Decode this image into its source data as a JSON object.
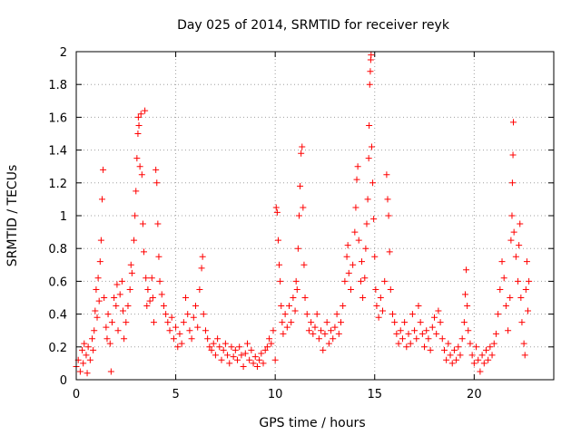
{
  "chart_data": {
    "type": "scatter",
    "title": "Day 025 of 2014, SRMTID for receiver reyk",
    "xlabel": "GPS time / hours",
    "ylabel": "SRMTID / TECUs",
    "xlim": [
      0,
      24
    ],
    "ylim": [
      0,
      2
    ],
    "xticks": [
      0,
      5,
      10,
      15,
      20
    ],
    "xtick_labels": [
      "0",
      "5",
      "10",
      "15",
      "20"
    ],
    "yticks": [
      0,
      0.2,
      0.4,
      0.6,
      0.8,
      1,
      1.2,
      1.4,
      1.6,
      1.8,
      2
    ],
    "ytick_labels": [
      "0",
      "0.2",
      "0.4",
      "0.6",
      "0.8",
      "1",
      "1.2",
      "1.4",
      "1.6",
      "1.8",
      "2"
    ],
    "grid": true,
    "marker": "+",
    "color": "#ff0000",
    "series": [
      {
        "name": "SRMTID",
        "points": [
          [
            0.0,
            0.08
          ],
          [
            0.1,
            0.12
          ],
          [
            0.2,
            0.05
          ],
          [
            0.3,
            0.18
          ],
          [
            0.35,
            0.1
          ],
          [
            0.4,
            0.22
          ],
          [
            0.5,
            0.15
          ],
          [
            0.55,
            0.04
          ],
          [
            0.6,
            0.2
          ],
          [
            0.7,
            0.12
          ],
          [
            0.8,
            0.25
          ],
          [
            0.85,
            0.18
          ],
          [
            0.9,
            0.3
          ],
          [
            0.95,
            0.42
          ],
          [
            1.0,
            0.55
          ],
          [
            1.05,
            0.38
          ],
          [
            1.1,
            0.62
          ],
          [
            1.15,
            0.48
          ],
          [
            1.2,
            0.72
          ],
          [
            1.25,
            0.85
          ],
          [
            1.3,
            1.1
          ],
          [
            1.35,
            1.28
          ],
          [
            1.4,
            0.5
          ],
          [
            1.5,
            0.32
          ],
          [
            1.55,
            0.25
          ],
          [
            1.6,
            0.4
          ],
          [
            1.7,
            0.22
          ],
          [
            1.75,
            0.05
          ],
          [
            1.8,
            0.35
          ],
          [
            1.9,
            0.5
          ],
          [
            2.0,
            0.45
          ],
          [
            2.05,
            0.58
          ],
          [
            2.1,
            0.3
          ],
          [
            2.2,
            0.52
          ],
          [
            2.3,
            0.6
          ],
          [
            2.35,
            0.42
          ],
          [
            2.4,
            0.25
          ],
          [
            2.5,
            0.35
          ],
          [
            2.6,
            0.45
          ],
          [
            2.7,
            0.55
          ],
          [
            2.75,
            0.7
          ],
          [
            2.8,
            0.65
          ],
          [
            2.9,
            0.85
          ],
          [
            2.95,
            1.0
          ],
          [
            3.0,
            1.15
          ],
          [
            3.05,
            1.35
          ],
          [
            3.1,
            1.5
          ],
          [
            3.12,
            1.6
          ],
          [
            3.15,
            1.55
          ],
          [
            3.2,
            1.3
          ],
          [
            3.25,
            1.62
          ],
          [
            3.3,
            1.25
          ],
          [
            3.35,
            0.95
          ],
          [
            3.4,
            0.78
          ],
          [
            3.45,
            1.64
          ],
          [
            3.5,
            0.62
          ],
          [
            3.55,
            0.45
          ],
          [
            3.6,
            0.55
          ],
          [
            3.7,
            0.48
          ],
          [
            3.8,
            0.62
          ],
          [
            3.85,
            0.5
          ],
          [
            3.9,
            0.35
          ],
          [
            4.0,
            1.28
          ],
          [
            4.05,
            1.2
          ],
          [
            4.1,
            0.95
          ],
          [
            4.15,
            0.75
          ],
          [
            4.2,
            0.6
          ],
          [
            4.3,
            0.52
          ],
          [
            4.4,
            0.45
          ],
          [
            4.5,
            0.4
          ],
          [
            4.6,
            0.35
          ],
          [
            4.7,
            0.3
          ],
          [
            4.8,
            0.38
          ],
          [
            4.9,
            0.25
          ],
          [
            5.0,
            0.32
          ],
          [
            5.1,
            0.2
          ],
          [
            5.2,
            0.28
          ],
          [
            5.3,
            0.22
          ],
          [
            5.4,
            0.35
          ],
          [
            5.5,
            0.5
          ],
          [
            5.6,
            0.4
          ],
          [
            5.7,
            0.3
          ],
          [
            5.8,
            0.25
          ],
          [
            5.9,
            0.38
          ],
          [
            6.0,
            0.45
          ],
          [
            6.1,
            0.32
          ],
          [
            6.2,
            0.55
          ],
          [
            6.3,
            0.68
          ],
          [
            6.35,
            0.75
          ],
          [
            6.4,
            0.4
          ],
          [
            6.5,
            0.3
          ],
          [
            6.6,
            0.25
          ],
          [
            6.7,
            0.2
          ],
          [
            6.8,
            0.18
          ],
          [
            6.9,
            0.22
          ],
          [
            7.0,
            0.15
          ],
          [
            7.1,
            0.25
          ],
          [
            7.2,
            0.2
          ],
          [
            7.3,
            0.12
          ],
          [
            7.4,
            0.18
          ],
          [
            7.5,
            0.22
          ],
          [
            7.6,
            0.15
          ],
          [
            7.7,
            0.1
          ],
          [
            7.8,
            0.2
          ],
          [
            7.9,
            0.14
          ],
          [
            8.0,
            0.18
          ],
          [
            8.1,
            0.12
          ],
          [
            8.2,
            0.2
          ],
          [
            8.3,
            0.15
          ],
          [
            8.4,
            0.08
          ],
          [
            8.5,
            0.16
          ],
          [
            8.6,
            0.22
          ],
          [
            8.7,
            0.12
          ],
          [
            8.8,
            0.18
          ],
          [
            8.9,
            0.1
          ],
          [
            9.0,
            0.14
          ],
          [
            9.1,
            0.08
          ],
          [
            9.2,
            0.12
          ],
          [
            9.3,
            0.16
          ],
          [
            9.4,
            0.1
          ],
          [
            9.5,
            0.18
          ],
          [
            9.6,
            0.2
          ],
          [
            9.7,
            0.25
          ],
          [
            9.8,
            0.22
          ],
          [
            9.9,
            0.3
          ],
          [
            10.0,
            0.12
          ],
          [
            10.05,
            1.05
          ],
          [
            10.1,
            1.02
          ],
          [
            10.15,
            0.85
          ],
          [
            10.2,
            0.7
          ],
          [
            10.25,
            0.6
          ],
          [
            10.3,
            0.45
          ],
          [
            10.35,
            0.35
          ],
          [
            10.4,
            0.28
          ],
          [
            10.5,
            0.4
          ],
          [
            10.6,
            0.32
          ],
          [
            10.7,
            0.45
          ],
          [
            10.8,
            0.35
          ],
          [
            10.9,
            0.5
          ],
          [
            11.0,
            0.42
          ],
          [
            11.05,
            0.6
          ],
          [
            11.1,
            0.55
          ],
          [
            11.15,
            0.8
          ],
          [
            11.2,
            1.0
          ],
          [
            11.25,
            1.18
          ],
          [
            11.3,
            1.38
          ],
          [
            11.35,
            1.42
          ],
          [
            11.4,
            1.05
          ],
          [
            11.45,
            0.7
          ],
          [
            11.5,
            0.5
          ],
          [
            11.6,
            0.4
          ],
          [
            11.7,
            0.3
          ],
          [
            11.8,
            0.35
          ],
          [
            11.9,
            0.28
          ],
          [
            12.0,
            0.32
          ],
          [
            12.1,
            0.4
          ],
          [
            12.2,
            0.25
          ],
          [
            12.3,
            0.3
          ],
          [
            12.4,
            0.18
          ],
          [
            12.5,
            0.28
          ],
          [
            12.6,
            0.35
          ],
          [
            12.7,
            0.22
          ],
          [
            12.8,
            0.3
          ],
          [
            12.9,
            0.25
          ],
          [
            13.0,
            0.32
          ],
          [
            13.1,
            0.4
          ],
          [
            13.2,
            0.28
          ],
          [
            13.3,
            0.35
          ],
          [
            13.4,
            0.45
          ],
          [
            13.5,
            0.6
          ],
          [
            13.6,
            0.75
          ],
          [
            13.65,
            0.82
          ],
          [
            13.7,
            0.65
          ],
          [
            13.8,
            0.55
          ],
          [
            13.9,
            0.7
          ],
          [
            14.0,
            0.9
          ],
          [
            14.05,
            1.05
          ],
          [
            14.1,
            1.22
          ],
          [
            14.15,
            1.3
          ],
          [
            14.2,
            0.85
          ],
          [
            14.3,
            0.6
          ],
          [
            14.35,
            0.72
          ],
          [
            14.4,
            0.5
          ],
          [
            14.5,
            0.62
          ],
          [
            14.55,
            0.8
          ],
          [
            14.6,
            0.95
          ],
          [
            14.65,
            1.1
          ],
          [
            14.7,
            1.35
          ],
          [
            14.72,
            1.55
          ],
          [
            14.75,
            1.8
          ],
          [
            14.78,
            1.88
          ],
          [
            14.8,
            1.95
          ],
          [
            14.82,
            1.98
          ],
          [
            14.85,
            1.42
          ],
          [
            14.9,
            1.2
          ],
          [
            14.95,
            0.98
          ],
          [
            15.0,
            0.75
          ],
          [
            15.05,
            0.55
          ],
          [
            15.1,
            0.45
          ],
          [
            15.2,
            0.38
          ],
          [
            15.3,
            0.5
          ],
          [
            15.4,
            0.42
          ],
          [
            15.5,
            0.6
          ],
          [
            15.6,
            1.25
          ],
          [
            15.65,
            1.1
          ],
          [
            15.7,
            1.0
          ],
          [
            15.75,
            0.78
          ],
          [
            15.8,
            0.55
          ],
          [
            15.9,
            0.4
          ],
          [
            16.0,
            0.35
          ],
          [
            16.1,
            0.28
          ],
          [
            16.2,
            0.22
          ],
          [
            16.3,
            0.3
          ],
          [
            16.4,
            0.25
          ],
          [
            16.5,
            0.35
          ],
          [
            16.6,
            0.2
          ],
          [
            16.7,
            0.28
          ],
          [
            16.8,
            0.22
          ],
          [
            16.9,
            0.4
          ],
          [
            17.0,
            0.3
          ],
          [
            17.1,
            0.25
          ],
          [
            17.2,
            0.45
          ],
          [
            17.3,
            0.35
          ],
          [
            17.4,
            0.28
          ],
          [
            17.5,
            0.2
          ],
          [
            17.6,
            0.3
          ],
          [
            17.7,
            0.25
          ],
          [
            17.8,
            0.18
          ],
          [
            17.9,
            0.32
          ],
          [
            18.0,
            0.38
          ],
          [
            18.1,
            0.28
          ],
          [
            18.2,
            0.42
          ],
          [
            18.3,
            0.35
          ],
          [
            18.4,
            0.25
          ],
          [
            18.5,
            0.18
          ],
          [
            18.6,
            0.12
          ],
          [
            18.7,
            0.22
          ],
          [
            18.8,
            0.15
          ],
          [
            18.9,
            0.1
          ],
          [
            19.0,
            0.18
          ],
          [
            19.1,
            0.12
          ],
          [
            19.2,
            0.2
          ],
          [
            19.3,
            0.15
          ],
          [
            19.4,
            0.25
          ],
          [
            19.5,
            0.35
          ],
          [
            19.55,
            0.52
          ],
          [
            19.6,
            0.67
          ],
          [
            19.65,
            0.45
          ],
          [
            19.7,
            0.3
          ],
          [
            19.8,
            0.22
          ],
          [
            19.9,
            0.15
          ],
          [
            20.0,
            0.1
          ],
          [
            20.1,
            0.2
          ],
          [
            20.2,
            0.12
          ],
          [
            20.3,
            0.05
          ],
          [
            20.4,
            0.15
          ],
          [
            20.5,
            0.1
          ],
          [
            20.6,
            0.18
          ],
          [
            20.7,
            0.12
          ],
          [
            20.8,
            0.2
          ],
          [
            20.9,
            0.15
          ],
          [
            21.0,
            0.22
          ],
          [
            21.1,
            0.28
          ],
          [
            21.2,
            0.4
          ],
          [
            21.3,
            0.55
          ],
          [
            21.4,
            0.72
          ],
          [
            21.5,
            0.62
          ],
          [
            21.6,
            0.45
          ],
          [
            21.7,
            0.3
          ],
          [
            21.8,
            0.5
          ],
          [
            21.85,
            0.85
          ],
          [
            21.9,
            1.0
          ],
          [
            21.92,
            1.2
          ],
          [
            21.95,
            1.37
          ],
          [
            21.97,
            1.57
          ],
          [
            22.0,
            0.9
          ],
          [
            22.1,
            0.75
          ],
          [
            22.2,
            0.6
          ],
          [
            22.25,
            0.82
          ],
          [
            22.3,
            0.95
          ],
          [
            22.35,
            0.5
          ],
          [
            22.4,
            0.35
          ],
          [
            22.5,
            0.22
          ],
          [
            22.55,
            0.15
          ],
          [
            22.6,
            0.55
          ],
          [
            22.65,
            0.72
          ],
          [
            22.7,
            0.42
          ],
          [
            22.75,
            0.6
          ]
        ]
      }
    ]
  }
}
